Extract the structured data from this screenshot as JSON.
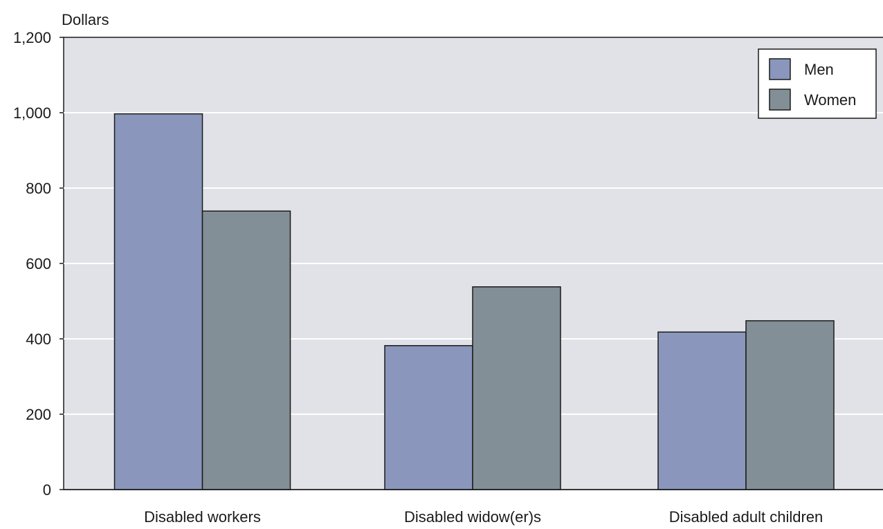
{
  "chart_data": {
    "type": "bar",
    "title": "",
    "xlabel": "",
    "ylabel": "Dollars",
    "ylim": [
      0,
      1200
    ],
    "yticks": [
      0,
      200,
      400,
      600,
      800,
      1000,
      1200
    ],
    "ytick_labels": [
      "0",
      "200",
      "400",
      "600",
      "800",
      "1,000",
      "1,200"
    ],
    "categories": [
      "Disabled workers",
      "Disabled widow(er)s",
      "Disabled adult children"
    ],
    "series": [
      {
        "name": "Men",
        "values": [
          997,
          382,
          418
        ],
        "color": "#8a96bc"
      },
      {
        "name": "Women",
        "values": [
          739,
          538,
          448
        ],
        "color": "#828f96"
      }
    ],
    "grid": true,
    "legend": "top-right",
    "plot_background": "#e1e2e7",
    "grid_color": "#ffffff"
  }
}
